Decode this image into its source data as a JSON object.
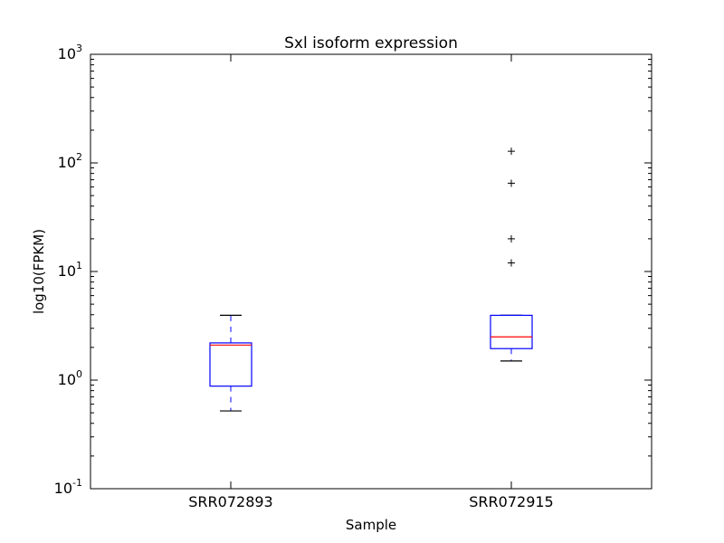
{
  "chart_data": {
    "type": "box",
    "title": "Sxl isoform expression",
    "xlabel": "Sample",
    "ylabel": "log10(FPKM)",
    "yscale": "log",
    "ylim": [
      0.1,
      1000
    ],
    "yticks": [
      {
        "value": 0.1,
        "base": "10",
        "exp": "-1"
      },
      {
        "value": 1,
        "base": "10",
        "exp": "0"
      },
      {
        "value": 10,
        "base": "10",
        "exp": "1"
      },
      {
        "value": 100,
        "base": "10",
        "exp": "2"
      },
      {
        "value": 1000,
        "base": "10",
        "exp": "3"
      }
    ],
    "categories": [
      "SRR072893",
      "SRR072915"
    ],
    "boxes": [
      {
        "name": "SRR072893",
        "whisker_low": 0.52,
        "q1": 0.88,
        "median": 2.1,
        "q3": 2.2,
        "whisker_high": 3.95,
        "outliers": []
      },
      {
        "name": "SRR072915",
        "whisker_low": 1.5,
        "q1": 1.95,
        "median": 2.5,
        "q3": 3.95,
        "whisker_high": 3.95,
        "outliers": [
          12,
          20,
          65,
          128
        ]
      }
    ],
    "box_color": "#0000ff",
    "median_color": "#ff0000",
    "whisker_color": "#0000ff",
    "cap_color": "#000000",
    "flier_color": "#000000",
    "grid": false
  }
}
